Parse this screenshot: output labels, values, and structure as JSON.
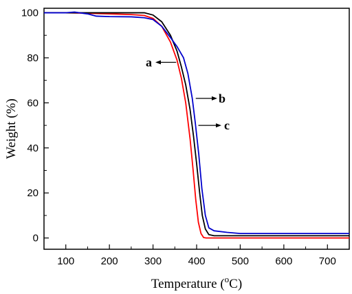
{
  "chart_data": {
    "type": "line",
    "xlabel_main": "Temperature (",
    "xlabel_sup": "o",
    "xlabel_end": "C)",
    "ylabel": "Weight (%)",
    "xlim": [
      50,
      750
    ],
    "ylim": [
      -5,
      102
    ],
    "xticks": [
      100,
      200,
      300,
      400,
      500,
      600,
      700
    ],
    "yticks": [
      0,
      20,
      40,
      60,
      80,
      100
    ],
    "grid": false,
    "series": [
      {
        "name": "a",
        "color": "#ff0000",
        "x": [
          50,
          100,
          150,
          200,
          250,
          280,
          300,
          320,
          340,
          355,
          365,
          375,
          385,
          392,
          398,
          404,
          410,
          416,
          422,
          430,
          500,
          600,
          750
        ],
        "y": [
          100,
          100,
          99.8,
          99.5,
          99.2,
          98.8,
          97.5,
          94,
          87,
          79,
          71,
          60,
          44,
          30,
          17,
          7,
          2,
          0.2,
          0,
          0,
          0,
          0,
          0
        ]
      },
      {
        "name": "b",
        "color": "#000000",
        "x": [
          50,
          100,
          150,
          200,
          250,
          280,
          300,
          320,
          340,
          355,
          365,
          375,
          385,
          393,
          400,
          407,
          413,
          420,
          428,
          440,
          500,
          600,
          750
        ],
        "y": [
          100,
          100,
          100,
          100,
          100,
          100,
          99,
          96,
          90,
          83,
          76,
          68,
          57,
          45,
          33,
          20,
          10,
          4,
          1.5,
          1,
          1,
          1,
          1
        ]
      },
      {
        "name": "c",
        "color": "#0000cc",
        "x": [
          50,
          100,
          120,
          150,
          170,
          200,
          250,
          280,
          300,
          320,
          340,
          355,
          370,
          380,
          390,
          397,
          405,
          412,
          420,
          428,
          440,
          470,
          500,
          600,
          750
        ],
        "y": [
          100,
          100,
          100.3,
          99.5,
          98.5,
          98.3,
          98.2,
          97.8,
          97,
          94,
          89,
          85,
          80,
          73,
          62,
          51,
          37,
          22,
          10,
          4.5,
          3.2,
          2.5,
          2,
          2,
          2
        ]
      }
    ],
    "annotations": [
      {
        "text": "a",
        "x": 353,
        "y": 78
      },
      {
        "text": "b",
        "x": 398,
        "y": 62
      },
      {
        "text": "c",
        "x": 404,
        "y": 50
      }
    ]
  }
}
